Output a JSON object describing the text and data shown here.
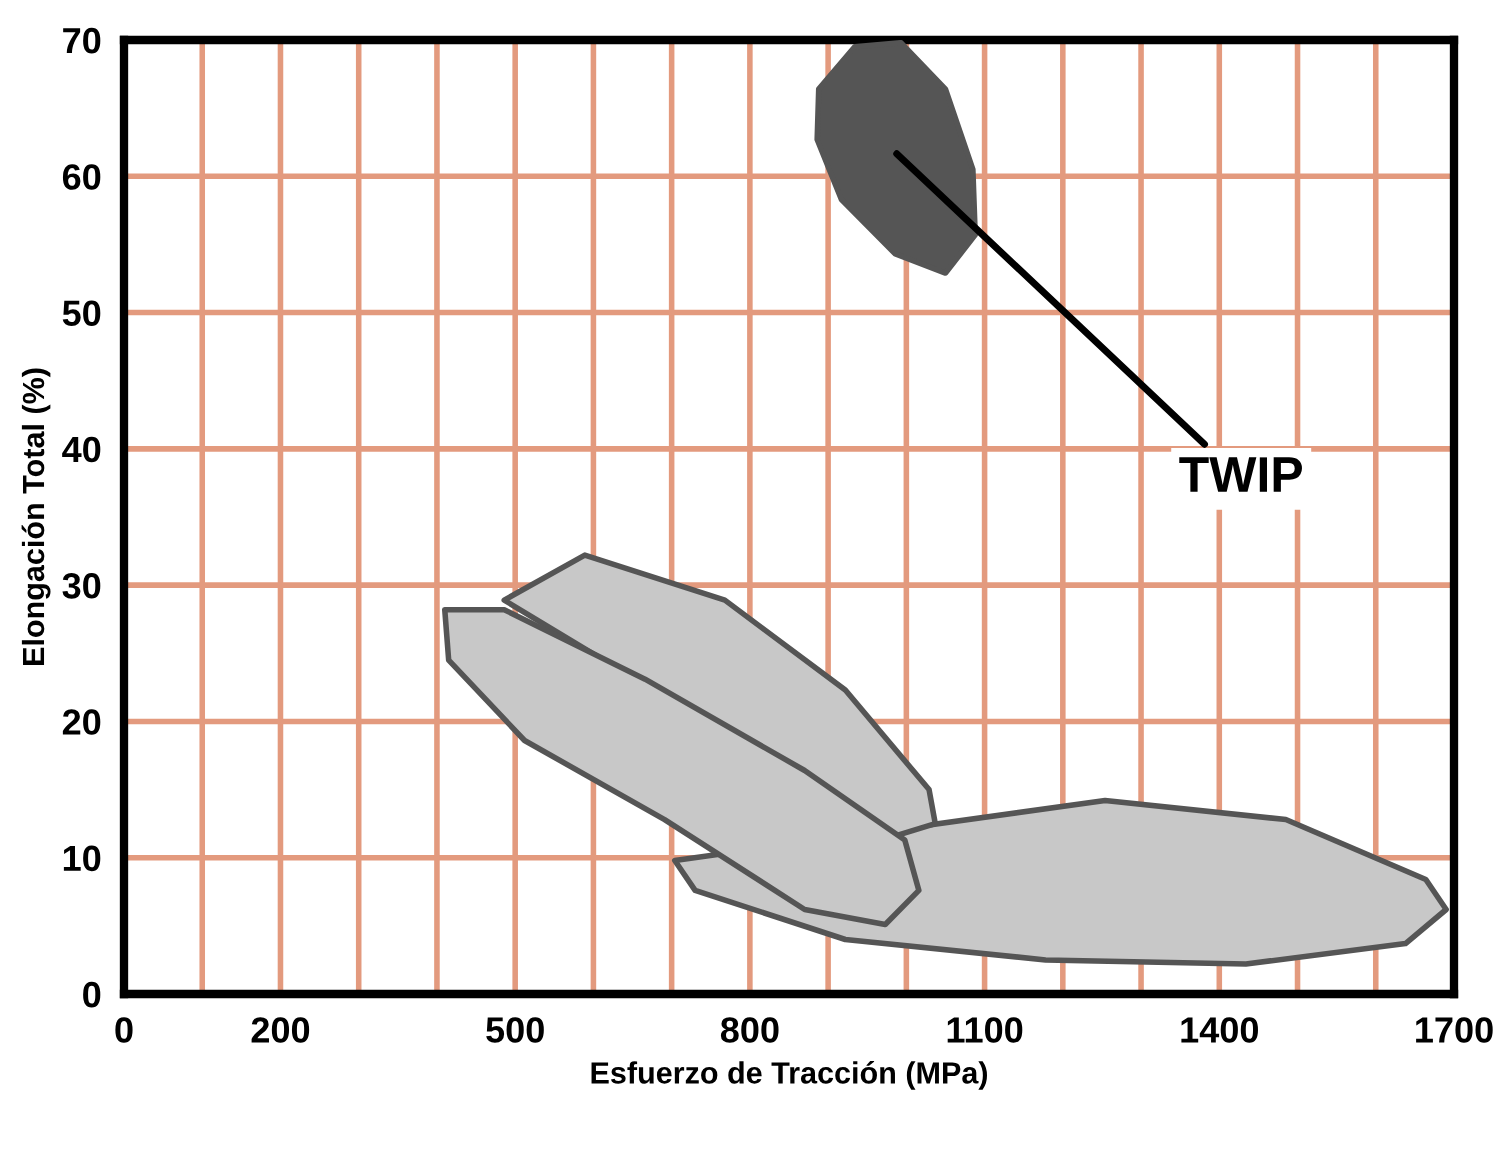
{
  "chart_data": {
    "type": "area",
    "xlabel": "Esfuerzo de Tracción (MPa)",
    "ylabel": "Elongación Total (%)",
    "xlim": [
      0,
      1700
    ],
    "ylim": [
      0,
      70
    ],
    "xticks": [
      0,
      {
        "value": 100,
        "label": null
      },
      200,
      {
        "value": 300,
        "label": null
      },
      {
        "value": 400,
        "label": null
      },
      500,
      {
        "value": 600,
        "label": null
      },
      {
        "value": 700,
        "label": null
      },
      800,
      {
        "value": 900,
        "label": null
      },
      {
        "value": 1000,
        "label": null
      },
      1100,
      {
        "value": 1200,
        "label": null
      },
      {
        "value": 1300,
        "label": null
      },
      1400,
      {
        "value": 1500,
        "label": null
      },
      {
        "value": 1600,
        "label": null
      },
      1700
    ],
    "yticks": [
      0,
      10,
      20,
      30,
      40,
      50,
      60,
      70
    ],
    "grid": true,
    "legend": false,
    "marker": "none",
    "annotations": [
      "TWIP"
    ],
    "series": [
      {
        "color": "#c8c8c8",
        "x": [
          704,
          1254,
          1485,
          1664,
          1690,
          1638,
          1434,
          1178,
          922,
          730
        ],
        "values": [
          9.8,
          14.2,
          12.8,
          8.4,
          6.2,
          3.7,
          2.2,
          2.5,
          4.0,
          7.6
        ]
      },
      {
        "color": "#c8c8c8",
        "x": [
          486,
          589,
          768,
          922,
          1029,
          1037,
          986
        ],
        "values": [
          28.9,
          32.2,
          28.9,
          22.3,
          15.0,
          12.5,
          11.6
        ]
      },
      {
        "color": "#c8c8c8",
        "x": [
          410,
          486,
          666,
          870,
          998,
          1016,
          973,
          870,
          691,
          512,
          415
        ],
        "values": [
          28.2,
          28.2,
          23.1,
          16.4,
          11.3,
          7.6,
          5.1,
          6.2,
          12.8,
          18.6,
          24.5
        ]
      },
      {
        "color": "#555555",
        "x": [
          934,
          888,
          886,
          917,
          986,
          1050,
          1088,
          1085,
          1050,
          993
        ],
        "values": [
          69.5,
          66.4,
          62.7,
          58.3,
          54.3,
          52.9,
          55.7,
          60.5,
          66.4,
          69.8
        ]
      }
    ]
  }
}
